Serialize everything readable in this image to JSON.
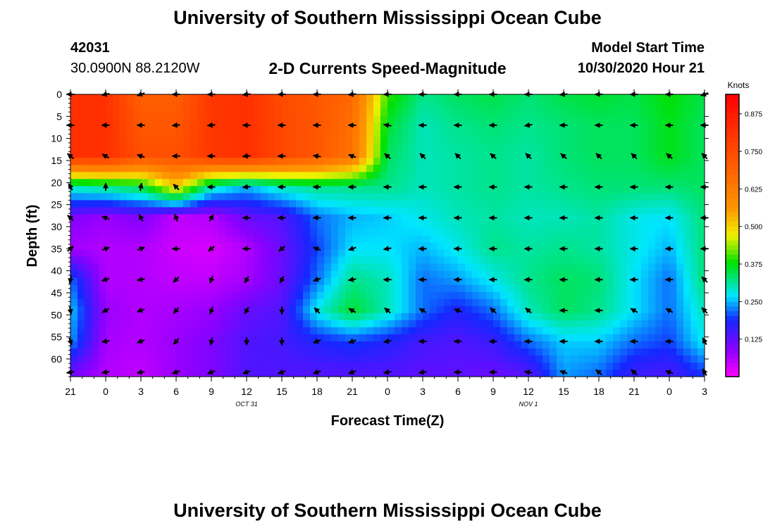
{
  "header": {
    "title": "University of Southern Mississippi Ocean Cube",
    "station_id": "42031",
    "station_coords": "30.0900N 88.2120W",
    "subtitle": "2-D Currents Speed-Magnitude",
    "model_start_label": "Model Start Time",
    "model_start_value": "10/30/2020 Hour 21"
  },
  "footer": {
    "title": "University of Southern Mississippi Ocean Cube"
  },
  "chart_data": {
    "type": "heatmap",
    "title": "2-D Currents Speed-Magnitude",
    "xlabel": "Forecast Time(Z)",
    "ylabel": "Depth (ft)",
    "x_tick_labels": [
      "21",
      "0",
      "3",
      "6",
      "9",
      "12",
      "15",
      "18",
      "21",
      "0",
      "3",
      "6",
      "9",
      "12",
      "15",
      "18",
      "21",
      "0",
      "3"
    ],
    "x_range_hours": [
      0,
      54
    ],
    "date_labels": [
      {
        "label": "OCT 31",
        "hour": 15
      },
      {
        "label": "NOV 1",
        "hour": 39
      }
    ],
    "y_ticks": [
      0,
      5,
      10,
      15,
      20,
      25,
      30,
      35,
      40,
      45,
      50,
      55,
      60
    ],
    "y_range_ft": [
      0,
      64
    ],
    "colorbar": {
      "label": "Knots",
      "range": [
        0,
        0.94
      ],
      "ticks": [
        "0.125",
        "0.250",
        "0.375",
        "0.500",
        "0.625",
        "0.750",
        "0.875"
      ],
      "tick_values": [
        0.125,
        0.25,
        0.375,
        0.5,
        0.625,
        0.75,
        0.875
      ]
    },
    "grid_x_hours": [
      0,
      3,
      6,
      9,
      12,
      15,
      18,
      21,
      24,
      27,
      30,
      33,
      36,
      39,
      42,
      45,
      48,
      51,
      54
    ],
    "grid_depth_ft": [
      0,
      7,
      14,
      21,
      28,
      35,
      42,
      49,
      56,
      63
    ],
    "speed_knots": [
      [
        0.82,
        0.82,
        0.7,
        0.7,
        0.8,
        0.82,
        0.75,
        0.72,
        0.68,
        0.4,
        0.32,
        0.34,
        0.35,
        0.33,
        0.35,
        0.36,
        0.35,
        0.38,
        0.35
      ],
      [
        0.82,
        0.82,
        0.72,
        0.72,
        0.8,
        0.82,
        0.76,
        0.72,
        0.66,
        0.36,
        0.3,
        0.32,
        0.33,
        0.32,
        0.33,
        0.34,
        0.34,
        0.37,
        0.34
      ],
      [
        0.82,
        0.82,
        0.74,
        0.74,
        0.8,
        0.82,
        0.76,
        0.72,
        0.65,
        0.34,
        0.3,
        0.31,
        0.32,
        0.31,
        0.33,
        0.34,
        0.34,
        0.37,
        0.34
      ],
      [
        0.3,
        0.32,
        0.35,
        0.5,
        0.3,
        0.25,
        0.3,
        0.32,
        0.32,
        0.32,
        0.3,
        0.31,
        0.32,
        0.31,
        0.32,
        0.33,
        0.33,
        0.33,
        0.34
      ],
      [
        0.1,
        0.08,
        0.1,
        0.05,
        0.06,
        0.12,
        0.14,
        0.22,
        0.25,
        0.26,
        0.28,
        0.3,
        0.31,
        0.3,
        0.3,
        0.31,
        0.28,
        0.27,
        0.33
      ],
      [
        0.07,
        0.06,
        0.06,
        0.04,
        0.03,
        0.06,
        0.12,
        0.2,
        0.27,
        0.27,
        0.25,
        0.28,
        0.32,
        0.31,
        0.32,
        0.31,
        0.28,
        0.25,
        0.33
      ],
      [
        0.22,
        0.06,
        0.06,
        0.05,
        0.05,
        0.07,
        0.12,
        0.22,
        0.32,
        0.3,
        0.22,
        0.24,
        0.28,
        0.32,
        0.34,
        0.33,
        0.27,
        0.22,
        0.33
      ],
      [
        0.26,
        0.08,
        0.06,
        0.07,
        0.08,
        0.12,
        0.14,
        0.28,
        0.36,
        0.3,
        0.22,
        0.18,
        0.22,
        0.3,
        0.34,
        0.32,
        0.27,
        0.22,
        0.3
      ],
      [
        0.24,
        0.07,
        0.06,
        0.08,
        0.1,
        0.14,
        0.15,
        0.18,
        0.2,
        0.18,
        0.15,
        0.14,
        0.16,
        0.22,
        0.26,
        0.26,
        0.22,
        0.2,
        0.28
      ],
      [
        0.12,
        0.06,
        0.05,
        0.08,
        0.1,
        0.14,
        0.14,
        0.14,
        0.14,
        0.14,
        0.13,
        0.13,
        0.12,
        0.14,
        0.24,
        0.22,
        0.16,
        0.15,
        0.2
      ]
    ],
    "arrow_angles_deg": [
      [
        180,
        190,
        200,
        180,
        180,
        185,
        180,
        180,
        185,
        180,
        180,
        180,
        180,
        180,
        185,
        180,
        180,
        180,
        200
      ],
      [
        180,
        180,
        180,
        185,
        185,
        180,
        180,
        180,
        180,
        170,
        180,
        180,
        180,
        190,
        180,
        180,
        180,
        180,
        180
      ],
      [
        140,
        150,
        160,
        180,
        180,
        185,
        180,
        170,
        160,
        140,
        135,
        135,
        140,
        135,
        140,
        135,
        135,
        140,
        135
      ],
      [
        120,
        90,
        80,
        135,
        180,
        185,
        180,
        180,
        180,
        180,
        180,
        180,
        180,
        180,
        180,
        180,
        180,
        180,
        180
      ],
      [
        140,
        160,
        120,
        110,
        60,
        180,
        180,
        180,
        180,
        180,
        180,
        180,
        180,
        180,
        180,
        180,
        180,
        180,
        180
      ],
      [
        40,
        20,
        20,
        180,
        220,
        180,
        220,
        160,
        200,
        190,
        180,
        180,
        180,
        180,
        180,
        180,
        180,
        180,
        180
      ],
      [
        260,
        200,
        190,
        225,
        250,
        240,
        240,
        200,
        190,
        180,
        180,
        180,
        180,
        180,
        180,
        180,
        180,
        180,
        135
      ],
      [
        280,
        210,
        200,
        230,
        250,
        240,
        270,
        135,
        150,
        140,
        150,
        160,
        140,
        140,
        180,
        180,
        150,
        150,
        135
      ],
      [
        290,
        190,
        200,
        230,
        260,
        270,
        270,
        200,
        200,
        190,
        180,
        180,
        180,
        180,
        180,
        180,
        180,
        180,
        120
      ],
      [
        190,
        190,
        190,
        200,
        200,
        200,
        200,
        200,
        200,
        190,
        190,
        180,
        180,
        170,
        160,
        140,
        140,
        160,
        120
      ]
    ]
  }
}
